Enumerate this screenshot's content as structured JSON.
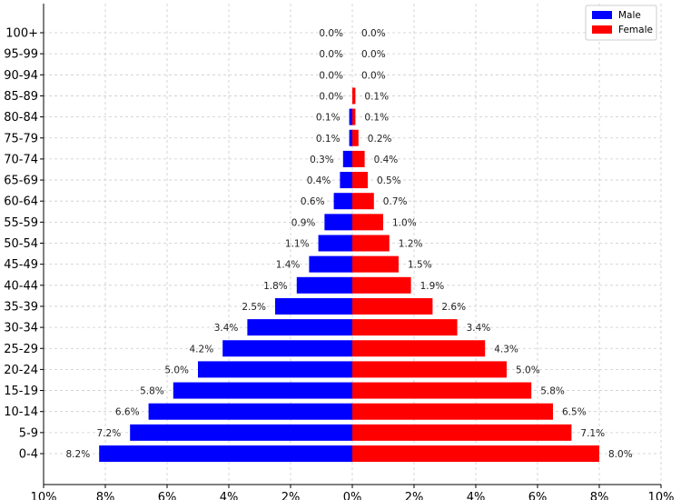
{
  "chart_data": {
    "type": "bar",
    "orientation": "horizontal",
    "layout": "population-pyramid",
    "categories": [
      "0-4",
      "5-9",
      "10-14",
      "15-19",
      "20-24",
      "25-29",
      "30-34",
      "35-39",
      "40-44",
      "45-49",
      "50-54",
      "55-59",
      "60-64",
      "65-69",
      "70-74",
      "75-79",
      "80-84",
      "85-89",
      "90-94",
      "95-99",
      "100+"
    ],
    "series": [
      {
        "name": "Male",
        "color": "#0000ff",
        "side": "left",
        "values": [
          8.2,
          7.2,
          6.6,
          5.8,
          5.0,
          4.2,
          3.4,
          2.5,
          1.8,
          1.4,
          1.1,
          0.9,
          0.6,
          0.4,
          0.3,
          0.1,
          0.1,
          0.0,
          0.0,
          0.0,
          0.0
        ],
        "labels": [
          "8.2%",
          "7.2%",
          "6.6%",
          "5.8%",
          "5.0%",
          "4.2%",
          "3.4%",
          "2.5%",
          "1.8%",
          "1.4%",
          "1.1%",
          "0.9%",
          "0.6%",
          "0.4%",
          "0.3%",
          "0.1%",
          "0.1%",
          "0.0%",
          "0.0%",
          "0.0%",
          "0.0%"
        ]
      },
      {
        "name": "Female",
        "color": "#ff0000",
        "side": "right",
        "values": [
          8.0,
          7.1,
          6.5,
          5.8,
          5.0,
          4.3,
          3.4,
          2.6,
          1.9,
          1.5,
          1.2,
          1.0,
          0.7,
          0.5,
          0.4,
          0.2,
          0.1,
          0.1,
          0.0,
          0.0,
          0.0
        ],
        "labels": [
          "8.0%",
          "7.1%",
          "6.5%",
          "5.8%",
          "5.0%",
          "4.3%",
          "3.4%",
          "2.6%",
          "1.9%",
          "1.5%",
          "1.2%",
          "1.0%",
          "0.7%",
          "0.5%",
          "0.4%",
          "0.2%",
          "0.1%",
          "0.1%",
          "0.0%",
          "0.0%",
          "0.0%"
        ]
      }
    ],
    "xlim": [
      -10,
      10
    ],
    "xticks": [
      -10,
      -8,
      -6,
      -4,
      -2,
      0,
      2,
      4,
      6,
      8,
      10
    ],
    "xtick_labels": [
      "10%",
      "8%",
      "6%",
      "4%",
      "2%",
      "0%",
      "2%",
      "4%",
      "6%",
      "8%",
      "10%"
    ],
    "title": "",
    "xlabel": "",
    "ylabel": "",
    "grid": true,
    "legend_position": "top-right"
  }
}
